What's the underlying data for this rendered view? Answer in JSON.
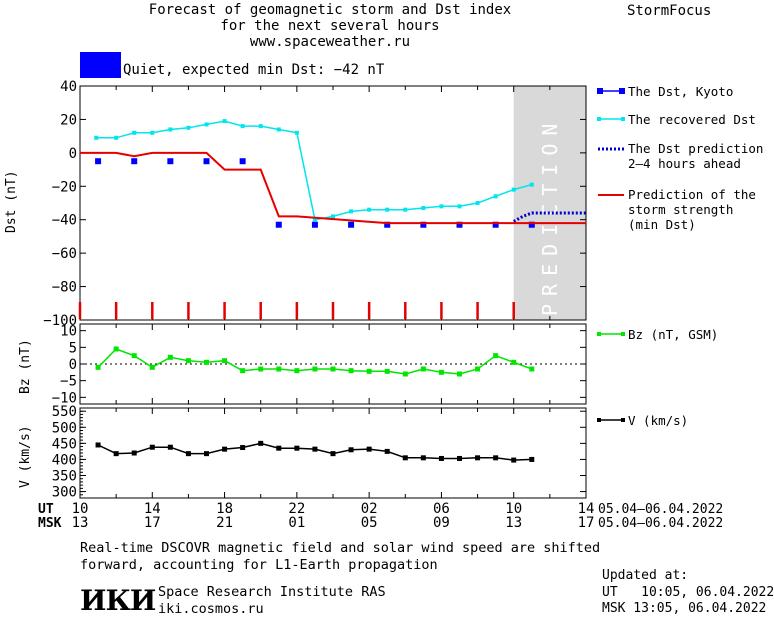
{
  "header": {
    "title_line1": "Forecast of geomagnetic storm and Dst index",
    "title_line2": "for the next several hours",
    "url": "www.spaceweather.ru",
    "brand": "StormFocus",
    "status_text": "Quiet, expected min Dst: −42 nT",
    "status_color": "#0000ff"
  },
  "legend": {
    "dst_kyoto": "The Dst, Kyoto",
    "recovered": "The recovered Dst",
    "prediction_1": "The Dst prediction",
    "prediction_2": "2–4 hours ahead",
    "strength_1": "Prediction of the",
    "strength_2": "storm strength",
    "strength_3": "(min Dst)",
    "bz": "Bz (nT, GSM)",
    "v": "V (km/s)"
  },
  "time_axis": {
    "ut_label": "UT",
    "msk_label": "MSK",
    "ut_ticks": [
      "10",
      "14",
      "18",
      "22",
      "02",
      "06",
      "10",
      "14"
    ],
    "msk_ticks": [
      "13",
      "17",
      "21",
      "01",
      "05",
      "09",
      "13",
      "17"
    ],
    "ut_range": "05.04–06.04.2022",
    "msk_range": "05.04–06.04.2022"
  },
  "footer": {
    "note_1": "Real-time DSCOVR magnetic field and solar wind speed are shifted",
    "note_2": "forward, accounting for L1-Earth propagation",
    "logo_text": "ИКИ",
    "institute": "Space Research Institute RAS",
    "website": "iki.cosmos.ru",
    "updated_label": "Updated at:",
    "updated_ut": "UT   10:05, 06.04.2022",
    "updated_msk": "MSK 13:05, 06.04.2022"
  },
  "chart_data": [
    {
      "type": "line",
      "ylabel": "Dst (nT)",
      "ylim": [
        -100,
        40
      ],
      "yticks": [
        40,
        20,
        0,
        -20,
        -40,
        -60,
        -80,
        -100
      ],
      "xlim_hours": [
        0,
        28
      ],
      "prediction_band": {
        "x_from": 24,
        "x_to": 28,
        "label": "PREDICTION"
      },
      "series": [
        {
          "name": "The Dst, Kyoto",
          "color": "#0000ff",
          "style": "markers",
          "x": [
            1,
            3,
            5,
            7,
            9,
            11,
            13,
            15,
            17,
            19,
            21,
            23,
            25
          ],
          "y": [
            -5,
            -5,
            -5,
            -5,
            -5,
            -43,
            -43,
            -43,
            -43,
            -43,
            -43,
            -43,
            -43
          ]
        },
        {
          "name": "The recovered Dst",
          "color": "#00e5ee",
          "style": "line-markers",
          "x": [
            0.9,
            2,
            3,
            4,
            5,
            6,
            7,
            8,
            9,
            10,
            11,
            12,
            13,
            14,
            15,
            16,
            17,
            18,
            19,
            20,
            21,
            22,
            23,
            24,
            25
          ],
          "y": [
            9,
            9,
            12,
            12,
            14,
            15,
            17,
            19,
            16,
            16,
            14,
            12,
            -40,
            -38,
            -35,
            -34,
            -34,
            -34,
            -33,
            -32,
            -32,
            -30,
            -26,
            -22,
            -19
          ]
        },
        {
          "name": "The Dst prediction 2–4 hours ahead",
          "color": "#0000cc",
          "style": "dotted",
          "x": [
            24,
            24.5,
            25,
            26,
            27,
            28
          ],
          "y": [
            -41,
            -38,
            -36,
            -36,
            -36,
            -36
          ]
        },
        {
          "name": "Prediction of the storm strength (min Dst)",
          "color": "#e60000",
          "style": "step",
          "x": [
            0,
            2,
            3,
            4,
            7,
            8,
            10,
            11,
            12,
            17,
            28
          ],
          "y": [
            0,
            0,
            -2,
            0,
            0,
            -10,
            -10,
            -38,
            -38,
            -42,
            -42
          ]
        }
      ]
    },
    {
      "type": "line",
      "ylabel": "Bz (nT)",
      "ylim": [
        -12,
        12
      ],
      "yticks": [
        10,
        5,
        0,
        -5,
        -10
      ],
      "series": [
        {
          "name": "Bz (nT, GSM)",
          "color": "#00e600",
          "x": [
            1,
            2,
            3,
            4,
            5,
            6,
            7,
            8,
            9,
            10,
            11,
            12,
            13,
            14,
            15,
            16,
            17,
            18,
            19,
            20,
            21,
            22,
            23,
            24,
            25
          ],
          "y": [
            -1,
            4.5,
            2.5,
            -1,
            2,
            1,
            0.5,
            1,
            -2,
            -1.5,
            -1.5,
            -2,
            -1.5,
            -1.5,
            -2,
            -2.2,
            -2.2,
            -3,
            -1.5,
            -2.5,
            -3,
            -1.5,
            2.5,
            0.5,
            -1.5
          ]
        }
      ]
    },
    {
      "type": "line",
      "ylabel": "V (km/s)",
      "ylim": [
        280,
        560
      ],
      "yticks": [
        550,
        500,
        450,
        400,
        350,
        300
      ],
      "series": [
        {
          "name": "V (km/s)",
          "color": "#000000",
          "x": [
            1,
            2,
            3,
            4,
            5,
            6,
            7,
            8,
            9,
            10,
            11,
            12,
            13,
            14,
            15,
            16,
            17,
            18,
            19,
            20,
            21,
            22,
            23,
            24,
            25
          ],
          "y": [
            445,
            418,
            420,
            438,
            438,
            418,
            418,
            432,
            437,
            450,
            435,
            435,
            432,
            418,
            430,
            432,
            425,
            405,
            405,
            403,
            403,
            405,
            405,
            398,
            400
          ]
        }
      ]
    }
  ]
}
